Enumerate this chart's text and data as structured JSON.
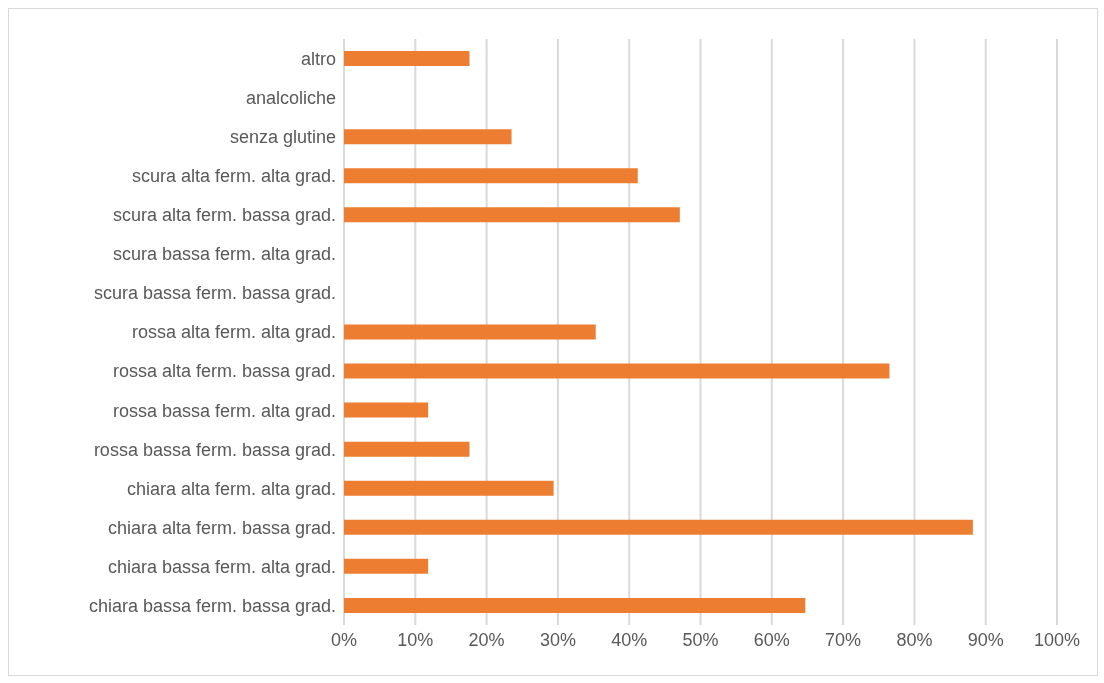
{
  "chart_data": {
    "type": "bar",
    "orientation": "horizontal",
    "categories": [
      "altro",
      "analcoliche",
      "senza glutine",
      "scura alta ferm. alta grad.",
      "scura alta ferm. bassa grad.",
      "scura bassa ferm. alta grad.",
      "scura bassa ferm. bassa grad.",
      "rossa alta ferm. alta grad.",
      "rossa alta ferm. bassa grad.",
      "rossa bassa ferm. alta grad.",
      "rossa bassa ferm. bassa grad.",
      "chiara alta ferm. alta grad.",
      "chiara alta ferm. bassa grad.",
      "chiara bassa ferm. alta grad.",
      "chiara bassa ferm. bassa grad."
    ],
    "values": [
      17.6,
      0,
      23.5,
      41.2,
      47.1,
      0,
      0,
      35.3,
      76.5,
      11.8,
      17.6,
      29.4,
      88.2,
      11.8,
      64.7
    ],
    "color": "#ed7d31",
    "xlim": [
      0,
      100
    ],
    "xticks": [
      {
        "value": 0,
        "label": "0%"
      },
      {
        "value": 10,
        "label": "10%"
      },
      {
        "value": 20,
        "label": "20%"
      },
      {
        "value": 30,
        "label": "30%"
      },
      {
        "value": 40,
        "label": "40%"
      },
      {
        "value": 50,
        "label": "50%"
      },
      {
        "value": 60,
        "label": "60%"
      },
      {
        "value": 70,
        "label": "70%"
      },
      {
        "value": 80,
        "label": "80%"
      },
      {
        "value": 90,
        "label": "90%"
      },
      {
        "value": 100,
        "label": "100%"
      }
    ],
    "grid": "x"
  }
}
